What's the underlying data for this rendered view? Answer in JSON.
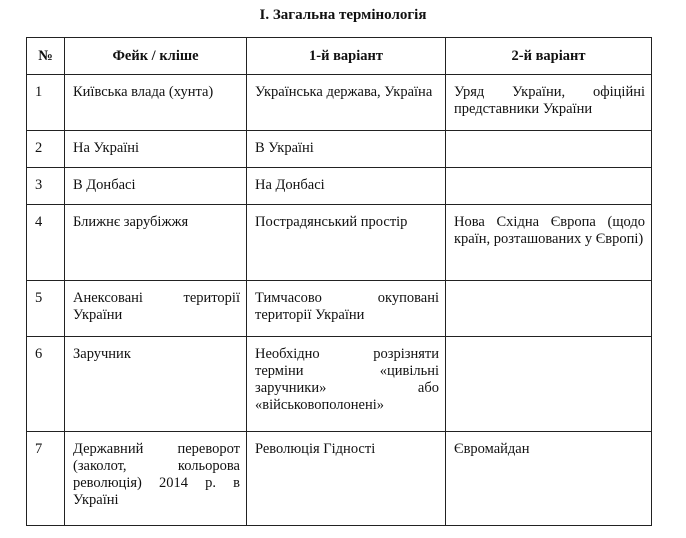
{
  "title": "I. Загальна термінологія",
  "table": {
    "headers": [
      "№",
      "Фейк / кліше",
      "1-й варіант",
      "2-й варіант"
    ],
    "rows": [
      [
        "1",
        "Київська влада (хунта)",
        "Українська держава, Україна",
        "Уряд України, офіційні представники України"
      ],
      [
        "2",
        "На Україні",
        "В Україні",
        ""
      ],
      [
        "3",
        "В Донбасі",
        "На Донбасі",
        ""
      ],
      [
        "4",
        "Ближнє зарубіжжя",
        "Пострадянський простір",
        "Нова Східна Європа (щодо країн, розташованих у Європі)"
      ],
      [
        "5",
        "Анексовані території України",
        "Тимчасово окуповані території України",
        ""
      ],
      [
        "6",
        "Заручник",
        "Необхідно розрізняти терміни «цивільні заручники» або «військовополонені»",
        ""
      ],
      [
        "7",
        "Державний переворот (заколот, кольорова революція) 2014 р. в Україні",
        "Революція Гідності",
        "Євромайдан"
      ]
    ]
  }
}
